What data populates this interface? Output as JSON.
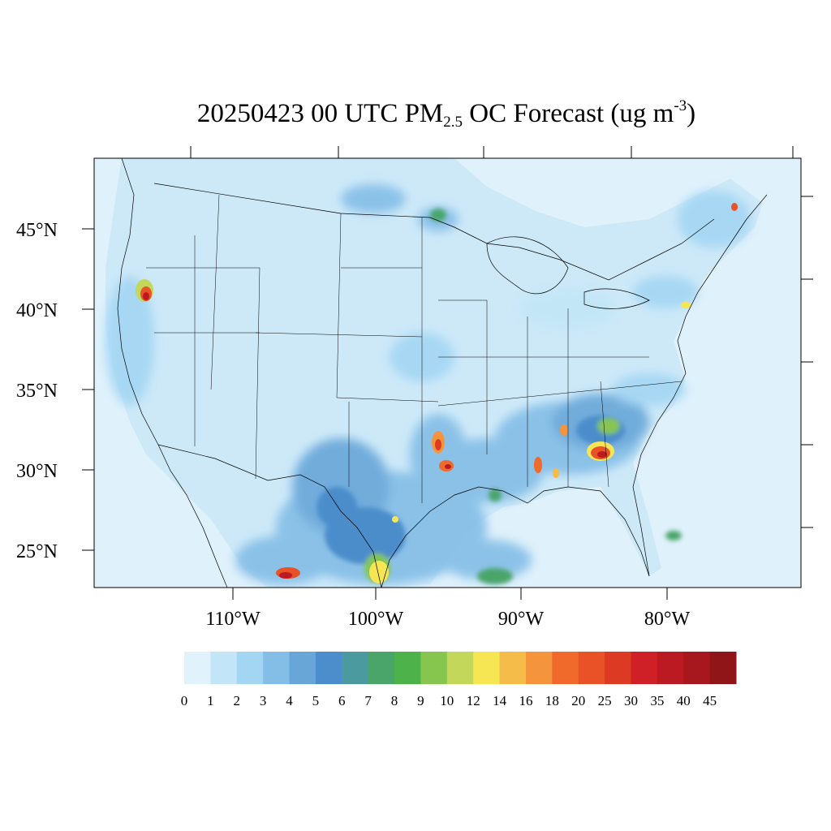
{
  "title": {
    "date_time": "20250423 00 UTC PM",
    "subscript": "2.5",
    "middle": " OC Forecast (ug m",
    "superscript": "-3",
    "end": ")"
  },
  "map": {
    "lat_labels": [
      "45°N",
      "40°N",
      "35°N",
      "30°N",
      "25°N"
    ],
    "lon_labels": [
      "110°W",
      "100°W",
      "90°W",
      "80°W"
    ],
    "ocean_color": "#dff1fb",
    "land_base_color": "#cde9f8"
  },
  "colorbar": {
    "labels": [
      "0",
      "1",
      "2",
      "3",
      "4",
      "5",
      "6",
      "7",
      "8",
      "9",
      "10",
      "12",
      "14",
      "16",
      "18",
      "20",
      "25",
      "30",
      "35",
      "40",
      "45"
    ],
    "colors": [
      "#e0f3fc",
      "#c2e6f7",
      "#a3d6f3",
      "#84bde6",
      "#68a6d8",
      "#4c8dcb",
      "#4a9aa0",
      "#4aa56a",
      "#4cb249",
      "#86c64f",
      "#c3d75a",
      "#f6e654",
      "#f6bc49",
      "#f4953d",
      "#ef6a2b",
      "#e95126",
      "#dc3a23",
      "#cf2027",
      "#bb1a22",
      "#a7171e",
      "#901519"
    ]
  }
}
